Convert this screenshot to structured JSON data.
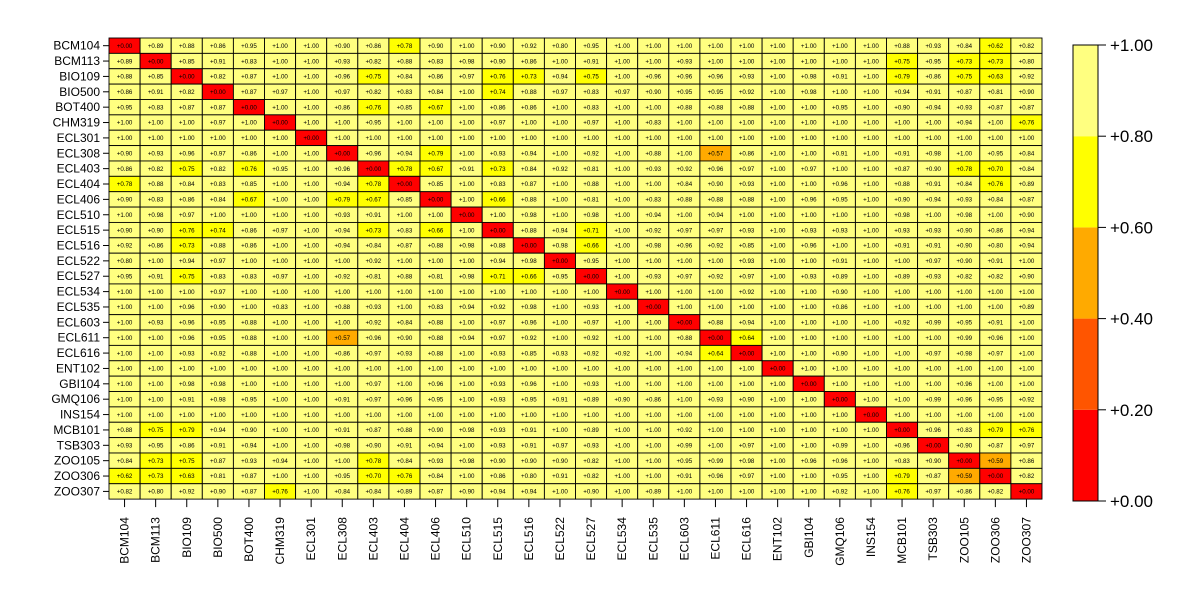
{
  "chart_data": {
    "type": "heatmap",
    "categories": [
      "BCM104",
      "BCM113",
      "BIO109",
      "BIO500",
      "BOT400",
      "CHM319",
      "ECL301",
      "ECL308",
      "ECL403",
      "ECL404",
      "ECL406",
      "ECL510",
      "ECL515",
      "ECL516",
      "ECL522",
      "ECL527",
      "ECL534",
      "ECL535",
      "ECL603",
      "ECL611",
      "ECL616",
      "ENT102",
      "GBI104",
      "GMQ106",
      "INS154",
      "MCB101",
      "TSB303",
      "ZOO105",
      "ZOO306",
      "ZOO307"
    ],
    "matrix": [
      [
        "+0.00",
        "+0.89",
        "+0.88",
        "+0.86",
        "+0.95",
        "+1.00",
        "+1.00",
        "+0.90",
        "+0.86",
        "+0.78",
        "+0.90",
        "+1.00",
        "+0.90",
        "+0.92",
        "+0.80",
        "+0.95",
        "+1.00",
        "+1.00",
        "+1.00",
        "+1.00",
        "+1.00",
        "+1.00",
        "+1.00",
        "+1.00",
        "+1.00",
        "+0.88",
        "+0.93",
        "+0.84",
        "+0.62",
        "+0.82"
      ],
      [
        "+0.89",
        "+0.00",
        "+0.85",
        "+0.91",
        "+0.83",
        "+1.00",
        "+1.00",
        "+0.93",
        "+0.82",
        "+0.88",
        "+0.83",
        "+0.98",
        "+0.90",
        "+0.86",
        "+1.00",
        "+0.91",
        "+1.00",
        "+1.00",
        "+0.93",
        "+1.00",
        "+1.00",
        "+1.00",
        "+1.00",
        "+1.00",
        "+1.00",
        "+0.75",
        "+0.95",
        "+0.73",
        "+0.73",
        "+0.80"
      ],
      [
        "+0.88",
        "+0.85",
        "+0.00",
        "+0.82",
        "+0.87",
        "+1.00",
        "+1.00",
        "+0.96",
        "+0.75",
        "+0.84",
        "+0.86",
        "+0.97",
        "+0.76",
        "+0.73",
        "+0.94",
        "+0.75",
        "+1.00",
        "+0.96",
        "+0.96",
        "+0.96",
        "+0.93",
        "+1.00",
        "+0.98",
        "+0.91",
        "+1.00",
        "+0.79",
        "+0.86",
        "+0.75",
        "+0.63",
        "+0.92"
      ],
      [
        "+0.86",
        "+0.91",
        "+0.82",
        "+0.00",
        "+0.87",
        "+0.97",
        "+1.00",
        "+0.97",
        "+0.82",
        "+0.83",
        "+0.84",
        "+1.00",
        "+0.74",
        "+0.88",
        "+0.97",
        "+0.83",
        "+0.97",
        "+0.90",
        "+0.95",
        "+0.95",
        "+0.92",
        "+1.00",
        "+0.98",
        "+1.00",
        "+1.00",
        "+0.94",
        "+0.91",
        "+0.87",
        "+0.81",
        "+0.90"
      ],
      [
        "+0.95",
        "+0.83",
        "+0.87",
        "+0.87",
        "+0.00",
        "+1.00",
        "+1.00",
        "+0.86",
        "+0.76",
        "+0.85",
        "+0.67",
        "+1.00",
        "+0.86",
        "+0.86",
        "+1.00",
        "+0.83",
        "+1.00",
        "+1.00",
        "+0.88",
        "+0.88",
        "+0.88",
        "+1.00",
        "+1.00",
        "+0.95",
        "+1.00",
        "+0.90",
        "+0.94",
        "+0.93",
        "+0.87",
        "+0.87"
      ],
      [
        "+1.00",
        "+1.00",
        "+1.00",
        "+0.97",
        "+1.00",
        "+0.00",
        "+1.00",
        "+1.00",
        "+0.95",
        "+1.00",
        "+1.00",
        "+1.00",
        "+0.97",
        "+1.00",
        "+1.00",
        "+0.97",
        "+1.00",
        "+0.83",
        "+1.00",
        "+1.00",
        "+1.00",
        "+1.00",
        "+1.00",
        "+1.00",
        "+1.00",
        "+1.00",
        "+1.00",
        "+0.94",
        "+1.00",
        "+0.76"
      ],
      [
        "+1.00",
        "+1.00",
        "+1.00",
        "+1.00",
        "+1.00",
        "+1.00",
        "+0.00",
        "+1.00",
        "+1.00",
        "+1.00",
        "+1.00",
        "+1.00",
        "+1.00",
        "+1.00",
        "+1.00",
        "+1.00",
        "+1.00",
        "+1.00",
        "+1.00",
        "+1.00",
        "+1.00",
        "+1.00",
        "+1.00",
        "+1.00",
        "+1.00",
        "+1.00",
        "+1.00",
        "+1.00",
        "+1.00",
        "+1.00"
      ],
      [
        "+0.90",
        "+0.93",
        "+0.96",
        "+0.97",
        "+0.86",
        "+1.00",
        "+1.00",
        "+0.00",
        "+0.96",
        "+0.94",
        "+0.79",
        "+1.00",
        "+0.93",
        "+0.94",
        "+1.00",
        "+0.92",
        "+1.00",
        "+0.88",
        "+1.00",
        "+0.57",
        "+0.86",
        "+1.00",
        "+1.00",
        "+0.91",
        "+1.00",
        "+0.91",
        "+0.98",
        "+1.00",
        "+0.95",
        "+0.84"
      ],
      [
        "+0.86",
        "+0.82",
        "+0.75",
        "+0.82",
        "+0.76",
        "+0.95",
        "+1.00",
        "+0.96",
        "+0.00",
        "+0.78",
        "+0.67",
        "+0.91",
        "+0.73",
        "+0.84",
        "+0.92",
        "+0.81",
        "+1.00",
        "+0.93",
        "+0.92",
        "+0.96",
        "+0.97",
        "+1.00",
        "+0.97",
        "+1.00",
        "+1.00",
        "+0.87",
        "+0.90",
        "+0.78",
        "+0.70",
        "+0.84"
      ],
      [
        "+0.78",
        "+0.88",
        "+0.84",
        "+0.83",
        "+0.85",
        "+1.00",
        "+1.00",
        "+0.94",
        "+0.78",
        "+0.00",
        "+0.85",
        "+1.00",
        "+0.83",
        "+0.87",
        "+1.00",
        "+0.88",
        "+1.00",
        "+1.00",
        "+0.84",
        "+0.90",
        "+0.93",
        "+1.00",
        "+1.00",
        "+0.96",
        "+1.00",
        "+0.88",
        "+0.91",
        "+0.84",
        "+0.76",
        "+0.89"
      ],
      [
        "+0.90",
        "+0.83",
        "+0.86",
        "+0.84",
        "+0.67",
        "+1.00",
        "+1.00",
        "+0.79",
        "+0.67",
        "+0.85",
        "+0.00",
        "+1.00",
        "+0.66",
        "+0.88",
        "+1.00",
        "+0.81",
        "+1.00",
        "+0.83",
        "+0.88",
        "+0.88",
        "+0.88",
        "+1.00",
        "+0.96",
        "+0.95",
        "+1.00",
        "+0.90",
        "+0.94",
        "+0.93",
        "+0.84",
        "+0.87"
      ],
      [
        "+1.00",
        "+0.98",
        "+0.97",
        "+1.00",
        "+1.00",
        "+1.00",
        "+1.00",
        "+0.93",
        "+0.91",
        "+1.00",
        "+1.00",
        "+0.00",
        "+1.00",
        "+0.98",
        "+1.00",
        "+0.98",
        "+1.00",
        "+0.94",
        "+1.00",
        "+0.94",
        "+1.00",
        "+1.00",
        "+1.00",
        "+1.00",
        "+1.00",
        "+0.98",
        "+1.00",
        "+0.98",
        "+1.00",
        "+0.90"
      ],
      [
        "+0.90",
        "+0.90",
        "+0.76",
        "+0.74",
        "+0.86",
        "+0.97",
        "+1.00",
        "+0.94",
        "+0.73",
        "+0.83",
        "+0.66",
        "+1.00",
        "+0.00",
        "+0.88",
        "+0.94",
        "+0.71",
        "+1.00",
        "+0.92",
        "+0.97",
        "+0.97",
        "+0.93",
        "+1.00",
        "+0.93",
        "+0.93",
        "+1.00",
        "+0.93",
        "+0.93",
        "+0.90",
        "+0.86",
        "+0.94"
      ],
      [
        "+0.92",
        "+0.86",
        "+0.73",
        "+0.88",
        "+0.86",
        "+1.00",
        "+1.00",
        "+0.94",
        "+0.84",
        "+0.87",
        "+0.88",
        "+0.98",
        "+0.88",
        "+0.00",
        "+0.98",
        "+0.66",
        "+1.00",
        "+0.98",
        "+0.96",
        "+0.92",
        "+0.85",
        "+1.00",
        "+0.96",
        "+1.00",
        "+1.00",
        "+0.91",
        "+0.91",
        "+0.90",
        "+0.80",
        "+0.94"
      ],
      [
        "+0.80",
        "+1.00",
        "+0.94",
        "+0.97",
        "+1.00",
        "+1.00",
        "+1.00",
        "+1.00",
        "+0.92",
        "+1.00",
        "+1.00",
        "+1.00",
        "+0.94",
        "+0.98",
        "+0.00",
        "+0.95",
        "+1.00",
        "+1.00",
        "+1.00",
        "+1.00",
        "+0.93",
        "+1.00",
        "+1.00",
        "+0.91",
        "+1.00",
        "+1.00",
        "+0.97",
        "+0.90",
        "+0.91",
        "+1.00"
      ],
      [
        "+0.95",
        "+0.91",
        "+0.75",
        "+0.83",
        "+0.83",
        "+0.97",
        "+1.00",
        "+0.92",
        "+0.81",
        "+0.88",
        "+0.81",
        "+0.98",
        "+0.71",
        "+0.66",
        "+0.95",
        "+0.00",
        "+1.00",
        "+0.93",
        "+0.97",
        "+0.92",
        "+0.97",
        "+1.00",
        "+0.93",
        "+0.89",
        "+1.00",
        "+0.89",
        "+0.93",
        "+0.82",
        "+0.82",
        "+0.90"
      ],
      [
        "+1.00",
        "+1.00",
        "+1.00",
        "+0.97",
        "+1.00",
        "+1.00",
        "+1.00",
        "+1.00",
        "+1.00",
        "+1.00",
        "+1.00",
        "+1.00",
        "+1.00",
        "+1.00",
        "+1.00",
        "+1.00",
        "+0.00",
        "+1.00",
        "+1.00",
        "+1.00",
        "+0.92",
        "+1.00",
        "+1.00",
        "+0.90",
        "+1.00",
        "+1.00",
        "+1.00",
        "+1.00",
        "+1.00",
        "+1.00"
      ],
      [
        "+1.00",
        "+1.00",
        "+0.96",
        "+0.90",
        "+1.00",
        "+0.83",
        "+1.00",
        "+0.88",
        "+0.93",
        "+1.00",
        "+0.83",
        "+0.94",
        "+0.92",
        "+0.98",
        "+1.00",
        "+0.93",
        "+1.00",
        "+0.00",
        "+1.00",
        "+1.00",
        "+1.00",
        "+1.00",
        "+1.00",
        "+0.86",
        "+1.00",
        "+1.00",
        "+1.00",
        "+1.00",
        "+1.00",
        "+0.89"
      ],
      [
        "+1.00",
        "+0.93",
        "+0.96",
        "+0.95",
        "+0.88",
        "+1.00",
        "+1.00",
        "+1.00",
        "+0.92",
        "+0.84",
        "+0.88",
        "+1.00",
        "+0.97",
        "+0.96",
        "+1.00",
        "+0.97",
        "+1.00",
        "+1.00",
        "+0.00",
        "+0.88",
        "+0.94",
        "+1.00",
        "+1.00",
        "+1.00",
        "+1.00",
        "+0.92",
        "+0.99",
        "+0.95",
        "+0.91",
        "+1.00"
      ],
      [
        "+1.00",
        "+1.00",
        "+0.96",
        "+0.95",
        "+0.88",
        "+1.00",
        "+1.00",
        "+0.57",
        "+0.96",
        "+0.90",
        "+0.88",
        "+0.94",
        "+0.97",
        "+0.92",
        "+1.00",
        "+0.92",
        "+1.00",
        "+1.00",
        "+0.88",
        "+0.00",
        "+0.64",
        "+1.00",
        "+1.00",
        "+1.00",
        "+1.00",
        "+1.00",
        "+1.00",
        "+0.99",
        "+0.96",
        "+1.00"
      ],
      [
        "+1.00",
        "+1.00",
        "+0.93",
        "+0.92",
        "+0.88",
        "+1.00",
        "+1.00",
        "+0.86",
        "+0.97",
        "+0.93",
        "+0.88",
        "+1.00",
        "+0.93",
        "+0.85",
        "+0.93",
        "+0.92",
        "+0.92",
        "+1.00",
        "+0.94",
        "+0.64",
        "+0.00",
        "+1.00",
        "+1.00",
        "+0.90",
        "+1.00",
        "+1.00",
        "+0.97",
        "+0.98",
        "+0.97",
        "+1.00"
      ],
      [
        "+1.00",
        "+1.00",
        "+1.00",
        "+1.00",
        "+1.00",
        "+1.00",
        "+1.00",
        "+1.00",
        "+1.00",
        "+1.00",
        "+1.00",
        "+1.00",
        "+1.00",
        "+1.00",
        "+1.00",
        "+1.00",
        "+1.00",
        "+1.00",
        "+1.00",
        "+1.00",
        "+1.00",
        "+0.00",
        "+1.00",
        "+1.00",
        "+1.00",
        "+1.00",
        "+1.00",
        "+1.00",
        "+1.00",
        "+1.00"
      ],
      [
        "+1.00",
        "+1.00",
        "+0.98",
        "+0.98",
        "+1.00",
        "+1.00",
        "+1.00",
        "+1.00",
        "+0.97",
        "+1.00",
        "+0.96",
        "+1.00",
        "+0.93",
        "+0.96",
        "+1.00",
        "+0.93",
        "+1.00",
        "+1.00",
        "+1.00",
        "+1.00",
        "+1.00",
        "+1.00",
        "+0.00",
        "+1.00",
        "+1.00",
        "+1.00",
        "+1.00",
        "+0.96",
        "+1.00",
        "+1.00"
      ],
      [
        "+1.00",
        "+1.00",
        "+0.91",
        "+0.98",
        "+0.95",
        "+1.00",
        "+1.00",
        "+0.91",
        "+0.97",
        "+0.96",
        "+0.95",
        "+1.00",
        "+0.93",
        "+0.95",
        "+0.91",
        "+0.89",
        "+0.90",
        "+0.86",
        "+1.00",
        "+0.93",
        "+0.90",
        "+1.00",
        "+1.00",
        "+0.00",
        "+1.00",
        "+1.00",
        "+0.99",
        "+0.96",
        "+0.95",
        "+0.92"
      ],
      [
        "+1.00",
        "+1.00",
        "+1.00",
        "+1.00",
        "+1.00",
        "+1.00",
        "+1.00",
        "+1.00",
        "+1.00",
        "+1.00",
        "+1.00",
        "+1.00",
        "+1.00",
        "+1.00",
        "+1.00",
        "+1.00",
        "+1.00",
        "+1.00",
        "+1.00",
        "+1.00",
        "+1.00",
        "+1.00",
        "+1.00",
        "+1.00",
        "+0.00",
        "+1.00",
        "+1.00",
        "+1.00",
        "+1.00",
        "+1.00"
      ],
      [
        "+0.88",
        "+0.75",
        "+0.79",
        "+0.94",
        "+0.90",
        "+1.00",
        "+1.00",
        "+0.91",
        "+0.87",
        "+0.88",
        "+0.90",
        "+0.98",
        "+0.93",
        "+0.91",
        "+1.00",
        "+0.89",
        "+1.00",
        "+1.00",
        "+0.92",
        "+1.00",
        "+1.00",
        "+1.00",
        "+1.00",
        "+1.00",
        "+1.00",
        "+0.00",
        "+0.96",
        "+0.83",
        "+0.79",
        "+0.76"
      ],
      [
        "+0.93",
        "+0.95",
        "+0.86",
        "+0.91",
        "+0.94",
        "+1.00",
        "+1.00",
        "+0.98",
        "+0.90",
        "+0.91",
        "+0.94",
        "+1.00",
        "+0.93",
        "+0.91",
        "+0.97",
        "+0.93",
        "+1.00",
        "+1.00",
        "+0.99",
        "+1.00",
        "+0.97",
        "+1.00",
        "+1.00",
        "+0.99",
        "+1.00",
        "+0.96",
        "+0.00",
        "+0.90",
        "+0.87",
        "+0.97"
      ],
      [
        "+0.84",
        "+0.73",
        "+0.75",
        "+0.87",
        "+0.93",
        "+0.94",
        "+1.00",
        "+1.00",
        "+0.78",
        "+0.84",
        "+0.93",
        "+0.98",
        "+0.90",
        "+0.90",
        "+0.90",
        "+0.82",
        "+1.00",
        "+1.00",
        "+0.95",
        "+0.99",
        "+0.98",
        "+1.00",
        "+0.96",
        "+0.96",
        "+1.00",
        "+0.83",
        "+0.90",
        "+0.00",
        "+0.59",
        "+0.86"
      ],
      [
        "+0.62",
        "+0.73",
        "+0.63",
        "+0.81",
        "+0.87",
        "+1.00",
        "+1.00",
        "+0.95",
        "+0.70",
        "+0.76",
        "+0.84",
        "+1.00",
        "+0.86",
        "+0.80",
        "+0.91",
        "+0.82",
        "+1.00",
        "+1.00",
        "+0.91",
        "+0.96",
        "+0.97",
        "+1.00",
        "+1.00",
        "+0.95",
        "+1.00",
        "+0.79",
        "+0.87",
        "+0.59",
        "+0.00",
        "+0.82"
      ],
      [
        "+0.82",
        "+0.80",
        "+0.92",
        "+0.90",
        "+0.87",
        "+0.76",
        "+1.00",
        "+0.84",
        "+0.84",
        "+0.89",
        "+0.87",
        "+0.90",
        "+0.94",
        "+0.94",
        "+1.00",
        "+0.90",
        "+1.00",
        "+0.89",
        "+1.00",
        "+1.00",
        "+1.00",
        "+1.00",
        "+1.00",
        "+0.92",
        "+1.00",
        "+0.76",
        "+0.97",
        "+0.86",
        "+0.82",
        "+0.00"
      ]
    ],
    "value_range": [
      0,
      1
    ],
    "color_bins": [
      {
        "range": [
          0.0,
          0.2
        ],
        "color": "#FF0000"
      },
      {
        "range": [
          0.2,
          0.4
        ],
        "color": "#FF5500"
      },
      {
        "range": [
          0.4,
          0.6
        ],
        "color": "#FFAA00"
      },
      {
        "range": [
          0.6,
          0.8
        ],
        "color": "#FFFF00"
      },
      {
        "range": [
          0.8,
          1.0
        ],
        "color": "#FFFF80"
      }
    ],
    "legend": {
      "position": "right",
      "ticks": [
        "+1.00",
        "+0.80",
        "+0.60",
        "+0.40",
        "+0.20",
        "+0.00"
      ]
    }
  }
}
